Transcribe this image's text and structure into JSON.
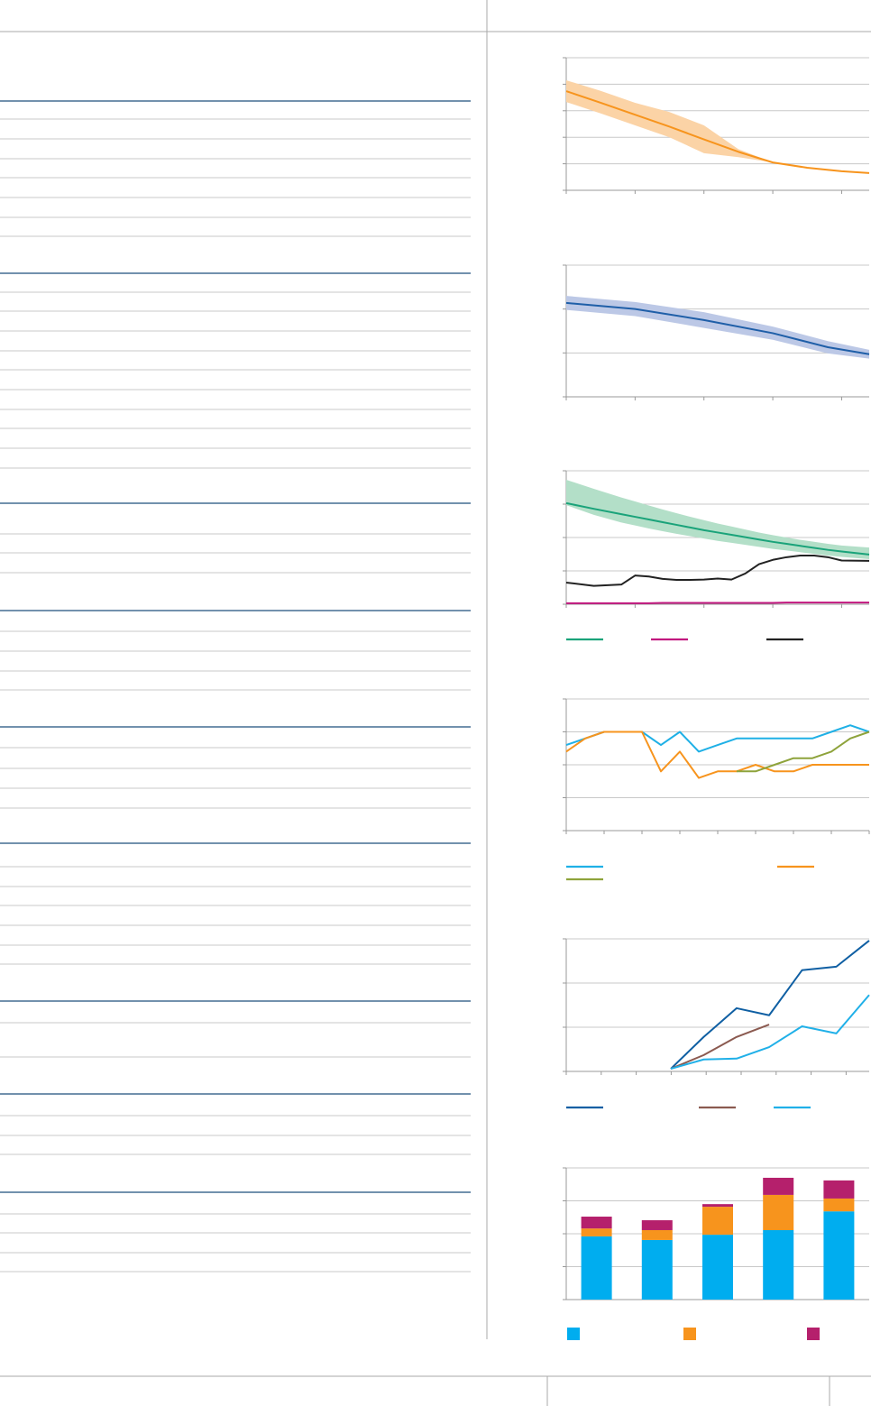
{
  "chart_data": [
    {
      "type": "line",
      "xlim": [
        0,
        4.4
      ],
      "xticks": [
        0,
        1,
        2,
        3,
        4
      ],
      "ylim": [
        0,
        5
      ],
      "yticks": [
        0,
        1,
        2,
        3,
        4,
        5
      ],
      "grid": true,
      "x": [
        0,
        0.5,
        1,
        1.5,
        2,
        2.5,
        3,
        3.5,
        4,
        4.4
      ],
      "series": [
        {
          "color": "#f7941d",
          "band_color": "#fbd3a6",
          "values": [
            3.74,
            3.3,
            2.85,
            2.4,
            1.92,
            1.45,
            1.05,
            0.85,
            0.72,
            0.65
          ],
          "upper": [
            4.15,
            3.75,
            3.3,
            2.95,
            2.45,
            1.55,
            1.05,
            0.85,
            0.72,
            0.65
          ],
          "lower": [
            3.33,
            2.9,
            2.45,
            2.0,
            1.4,
            1.25,
            1.05,
            0.85,
            0.72,
            0.65
          ]
        }
      ]
    },
    {
      "type": "line",
      "xlim": [
        0,
        4.4
      ],
      "xticks": [
        0,
        1,
        2,
        3,
        4
      ],
      "ylim": [
        0,
        3
      ],
      "yticks": [
        0,
        1,
        2,
        3
      ],
      "grid": true,
      "x": [
        0,
        1,
        2,
        3,
        3.8,
        4.4
      ],
      "series": [
        {
          "color": "#1f5fa8",
          "band_color": "#bcc8e6",
          "values": [
            2.14,
            2.0,
            1.75,
            1.45,
            1.13,
            0.97
          ],
          "upper": [
            2.3,
            2.16,
            1.93,
            1.6,
            1.27,
            1.07
          ],
          "lower": [
            1.98,
            1.84,
            1.57,
            1.3,
            0.99,
            0.87
          ]
        }
      ]
    },
    {
      "type": "line",
      "xlim": [
        0,
        4.4
      ],
      "xticks": [
        0,
        1,
        2,
        3,
        4
      ],
      "ylim": [
        0,
        4
      ],
      "yticks": [
        0,
        1,
        2,
        3,
        4
      ],
      "grid": true,
      "legend": true,
      "x": [
        0,
        0.4,
        0.8,
        1.0,
        1.2,
        1.4,
        1.6,
        1.8,
        2.0,
        2.2,
        2.4,
        2.6,
        2.8,
        3.0,
        3.2,
        3.4,
        3.6,
        3.8,
        4.0,
        4.4
      ],
      "series": [
        {
          "color": "#1aa37a",
          "band_color": "#b3dfc8",
          "values": [
            3.03,
            2.86,
            2.7,
            2.62,
            2.54,
            2.46,
            2.38,
            2.3,
            2.22,
            2.15,
            2.08,
            2.01,
            1.94,
            1.87,
            1.81,
            1.75,
            1.69,
            1.63,
            1.58,
            1.49
          ],
          "upper": [
            3.73,
            3.46,
            3.2,
            3.08,
            2.96,
            2.84,
            2.73,
            2.62,
            2.52,
            2.42,
            2.33,
            2.24,
            2.15,
            2.07,
            2.0,
            1.93,
            1.87,
            1.81,
            1.76,
            1.7
          ],
          "lower": [
            2.97,
            2.68,
            2.45,
            2.36,
            2.27,
            2.19,
            2.11,
            2.04,
            1.97,
            1.9,
            1.84,
            1.78,
            1.72,
            1.66,
            1.61,
            1.56,
            1.51,
            1.46,
            1.42,
            1.35
          ]
        },
        {
          "color": "#c2187f",
          "values": [
            0.03,
            0.03,
            0.03,
            0.03,
            0.03,
            0.04,
            0.04,
            0.04,
            0.04,
            0.04,
            0.04,
            0.04,
            0.04,
            0.04,
            0.05,
            0.05,
            0.05,
            0.05,
            0.05,
            0.05
          ]
        },
        {
          "color": "#222222",
          "values": [
            0.65,
            0.55,
            0.59,
            0.86,
            0.83,
            0.76,
            0.73,
            0.73,
            0.74,
            0.77,
            0.74,
            0.92,
            1.2,
            1.33,
            1.41,
            1.46,
            1.46,
            1.41,
            1.31,
            1.3
          ]
        }
      ]
    },
    {
      "type": "line",
      "xlim": [
        0,
        16
      ],
      "xticks": [
        0,
        2,
        4,
        6,
        8,
        10,
        12,
        14,
        16
      ],
      "ylim": [
        0,
        4
      ],
      "yticks": [
        0,
        1,
        2,
        3,
        4
      ],
      "grid": true,
      "legend": true,
      "x": [
        0,
        1,
        2,
        3,
        4,
        5,
        6,
        7,
        8,
        9,
        10,
        11,
        12,
        13,
        14,
        15,
        16
      ],
      "series": [
        {
          "color": "#1fb0e6",
          "values": [
            2.6,
            2.8,
            3,
            3,
            3,
            2.6,
            3,
            2.4,
            2.6,
            2.8,
            2.8,
            2.8,
            2.8,
            2.8,
            3.0,
            3.2,
            3.0
          ]
        },
        {
          "color": "#f7941d",
          "values": [
            2.4,
            2.8,
            3,
            3,
            3,
            1.8,
            2.4,
            1.6,
            1.8,
            1.8,
            2.0,
            1.8,
            1.8,
            2.0,
            2.0,
            2.0,
            2.0
          ]
        },
        {
          "color": "#8ea33b",
          "values": [
            null,
            null,
            null,
            null,
            null,
            null,
            null,
            null,
            null,
            1.8,
            1.8,
            2.0,
            2.2,
            2.2,
            2.4,
            2.8,
            3.0
          ]
        }
      ]
    },
    {
      "type": "line",
      "xlim": [
        0,
        8.66
      ],
      "xticks": [
        0,
        1,
        2,
        3,
        4,
        5,
        6,
        7,
        8
      ],
      "ylim": [
        0,
        3
      ],
      "yticks": [
        0,
        1,
        2,
        3
      ],
      "grid": true,
      "legend": true,
      "x": [
        2.99,
        3.93,
        4.87,
        5.8,
        6.74,
        7.72,
        8.66
      ],
      "series": [
        {
          "color": "#0f5fa3",
          "values": [
            0.06,
            0.78,
            1.43,
            1.27,
            2.29,
            2.37,
            2.96
          ]
        },
        {
          "color": "#8b5a50",
          "values": [
            0.06,
            0.37,
            0.78,
            1.06,
            null,
            null,
            null
          ]
        },
        {
          "color": "#20b0e8",
          "values": [
            0.06,
            0.27,
            0.29,
            0.55,
            1.02,
            0.86,
            1.73
          ]
        }
      ]
    },
    {
      "type": "bar",
      "stacked": true,
      "ylim": [
        0,
        4
      ],
      "yticks": [
        0,
        1,
        2,
        3,
        4
      ],
      "grid": true,
      "legend": true,
      "categories": [
        null,
        null,
        null,
        null,
        null
      ],
      "series": [
        {
          "color": "#00adef",
          "values": [
            1.92,
            1.81,
            1.97,
            2.11,
            2.68
          ]
        },
        {
          "color": "#f7941d",
          "values": [
            0.24,
            0.3,
            0.85,
            1.07,
            0.39
          ]
        },
        {
          "color": "#b5206c",
          "values": [
            0.36,
            0.3,
            0.08,
            0.52,
            0.55
          ]
        }
      ]
    }
  ]
}
